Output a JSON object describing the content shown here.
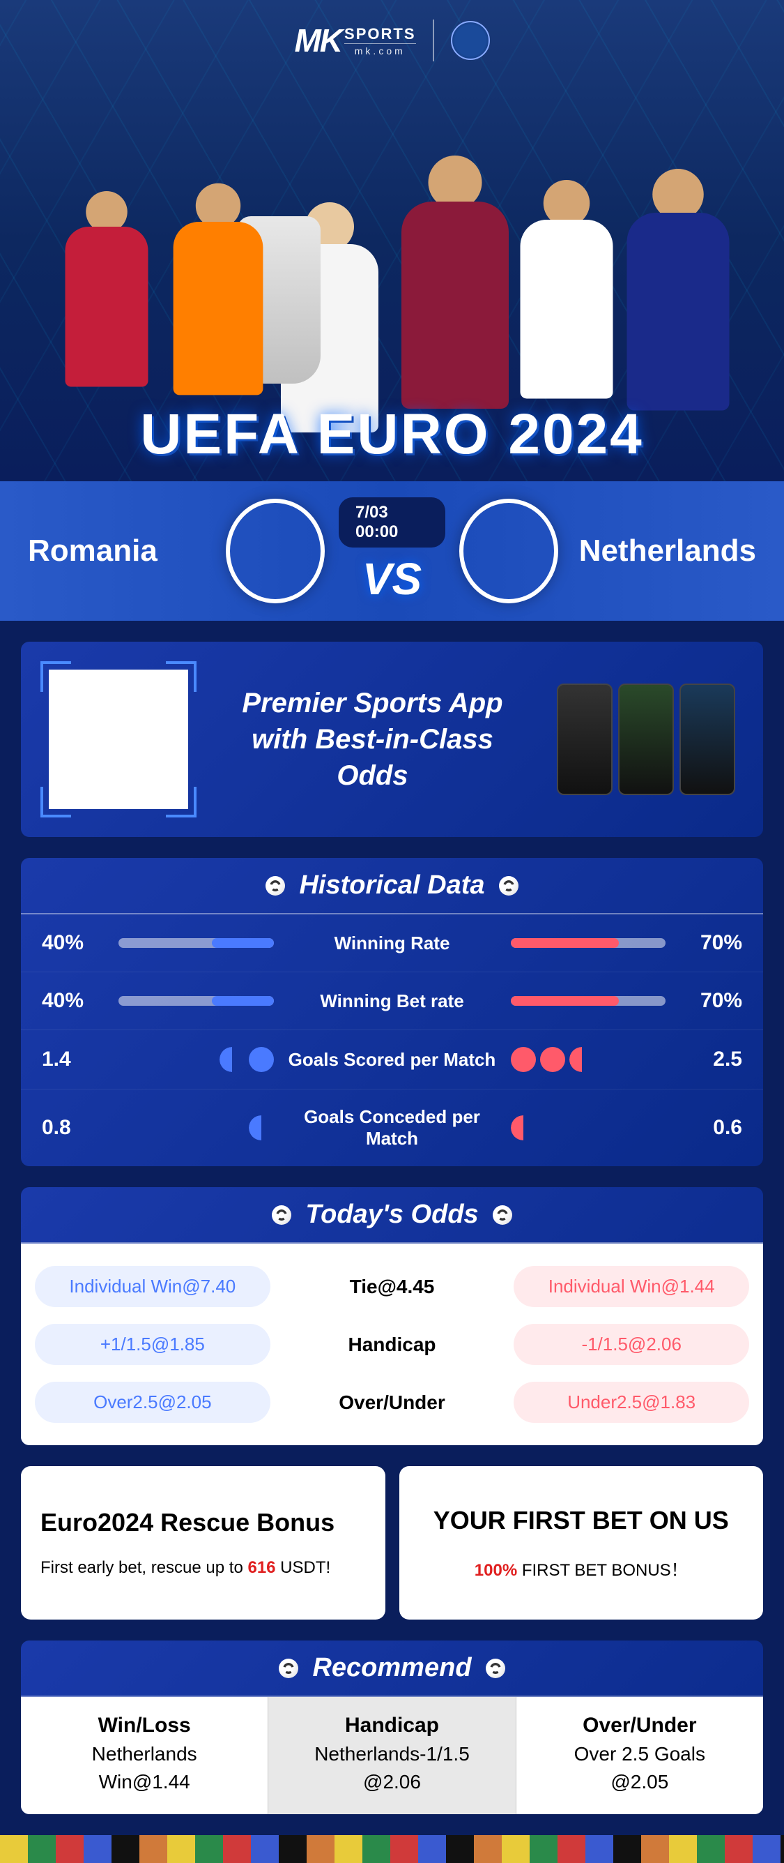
{
  "brand": {
    "mk": "MK",
    "sports": "SPORTS",
    "domain": "mk.com"
  },
  "hero": {
    "title": "UEFA EURO 2024"
  },
  "match": {
    "team_left": "Romania",
    "team_right": "Netherlands",
    "date": "7/03 00:00",
    "vs": "VS",
    "flag_left": {
      "type": "romania",
      "colors": [
        "#002b7f",
        "#fcd116",
        "#ce1126"
      ]
    },
    "flag_right": {
      "type": "netherlands",
      "colors": [
        "#ae1c28",
        "#ffffff",
        "#21468b"
      ]
    }
  },
  "promo": {
    "line1": "Premier Sports App",
    "line2": "with Best-in-Class Odds"
  },
  "historical": {
    "header": "Historical Data",
    "rows": [
      {
        "label": "Winning Rate",
        "left_val": "40%",
        "right_val": "70%",
        "left_pct": 40,
        "right_pct": 70,
        "type": "bar"
      },
      {
        "label": "Winning Bet rate",
        "left_val": "40%",
        "right_val": "70%",
        "left_pct": 40,
        "right_pct": 70,
        "type": "bar"
      },
      {
        "label": "Goals Scored per Match",
        "left_val": "1.4",
        "right_val": "2.5",
        "left_balls": 1.4,
        "right_balls": 2.5,
        "type": "balls"
      },
      {
        "label": "Goals Conceded per Match",
        "left_val": "0.8",
        "right_val": "0.6",
        "left_balls": 0.8,
        "right_balls": 0.6,
        "type": "balls"
      }
    ],
    "colors": {
      "left": "#4a7aff",
      "right": "#ff5a6a",
      "track": "rgba(255,255,255,.5)"
    }
  },
  "odds": {
    "header": "Today's Odds",
    "rows": [
      {
        "left": "Individual Win@7.40",
        "center": "Tie@4.45",
        "right": "Individual Win@1.44"
      },
      {
        "left": "+1/1.5@1.85",
        "center": "Handicap",
        "right": "-1/1.5@2.06"
      },
      {
        "left": "Over2.5@2.05",
        "center": "Over/Under",
        "right": "Under2.5@1.83"
      }
    ],
    "colors": {
      "left_bg": "#eaf0ff",
      "left_fg": "#4a7aff",
      "right_bg": "#ffeaec",
      "right_fg": "#ff5a6a"
    }
  },
  "bonus": {
    "left": {
      "title": "Euro2024 Rescue Bonus",
      "sub_pre": "First early bet, rescue up to ",
      "sub_hl": "616",
      "sub_post": " USDT!"
    },
    "right": {
      "title": "YOUR FIRST BET ON US",
      "sub_hl": "100%",
      "sub_post": " FIRST BET BONUS！"
    }
  },
  "recommend": {
    "header": "Recommend",
    "cols": [
      {
        "cat": "Win/Loss",
        "pick": "Netherlands",
        "odd": "Win@1.44"
      },
      {
        "cat": "Handicap",
        "pick": "Netherlands-1/1.5",
        "odd": "@2.06"
      },
      {
        "cat": "Over/Under",
        "pick": "Over 2.5 Goals",
        "odd": "@2.05"
      }
    ]
  }
}
